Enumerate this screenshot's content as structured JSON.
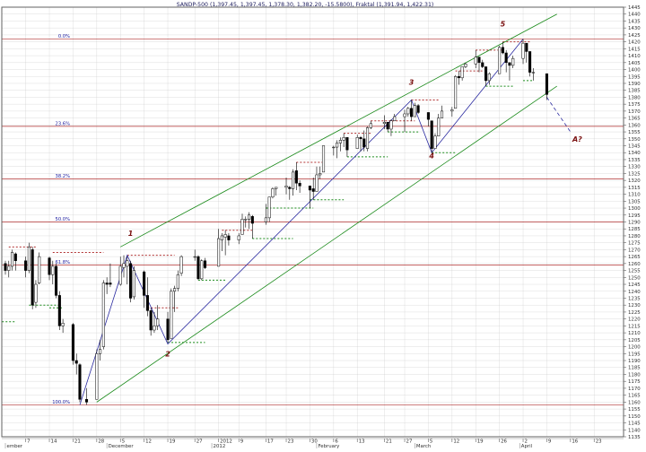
{
  "chart_data": {
    "type": "candlestick",
    "title": "SANDP-500 (1,397.45, 1,397.45, 1,378.30, 1,382.20, -15.5800), Fraktal (1,391.94, 1,422.31)",
    "y_axis": {
      "min": 1135,
      "max": 1445,
      "tick_step": 5,
      "position": "right"
    },
    "x_axis": {
      "tick_labels": [
        {
          "label": "7",
          "date": "2011-11-07"
        },
        {
          "label": "14",
          "date": "2011-11-14"
        },
        {
          "label": "21",
          "date": "2011-11-21"
        },
        {
          "label": "28",
          "date": "2011-11-28"
        },
        {
          "label": "5",
          "date": "2011-12-05"
        },
        {
          "label": "12",
          "date": "2011-12-12"
        },
        {
          "label": "19",
          "date": "2011-12-19"
        },
        {
          "label": "27",
          "date": "2011-12-27"
        },
        {
          "label": "2012",
          "date": "2012-01-03"
        },
        {
          "label": "9",
          "date": "2012-01-09"
        },
        {
          "label": "17",
          "date": "2012-01-17"
        },
        {
          "label": "23",
          "date": "2012-01-23"
        },
        {
          "label": "30",
          "date": "2012-01-30"
        },
        {
          "label": "6",
          "date": "2012-02-06"
        },
        {
          "label": "13",
          "date": "2012-02-13"
        },
        {
          "label": "21",
          "date": "2012-02-21"
        },
        {
          "label": "27",
          "date": "2012-02-27"
        },
        {
          "label": "5",
          "date": "2012-03-05"
        },
        {
          "label": "12",
          "date": "2012-03-12"
        },
        {
          "label": "19",
          "date": "2012-03-19"
        },
        {
          "label": "26",
          "date": "2012-03-26"
        },
        {
          "label": "2",
          "date": "2012-04-02"
        },
        {
          "label": "9",
          "date": "2012-04-09"
        },
        {
          "label": "16",
          "date": "2012-04-16"
        },
        {
          "label": "23",
          "date": "2012-04-23"
        }
      ],
      "month_labels": [
        {
          "label": "ember",
          "date": "2011-11-01"
        },
        {
          "label": "December",
          "date": "2011-12-01"
        },
        {
          "label": "2012",
          "date": "2012-01-01"
        },
        {
          "label": "February",
          "date": "2012-02-01"
        },
        {
          "label": "March",
          "date": "2012-03-01"
        },
        {
          "label": "April",
          "date": "2012-04-01"
        }
      ]
    },
    "candles": [
      [
        "2011-11-01",
        1260,
        1262,
        1252,
        1255
      ],
      [
        "2011-11-02",
        1255,
        1262,
        1250,
        1258
      ],
      [
        "2011-11-03",
        1258,
        1270,
        1255,
        1268
      ],
      [
        "2011-11-04",
        1267,
        1268,
        1255,
        1262
      ],
      [
        "2011-11-07",
        1262,
        1265,
        1250,
        1255
      ],
      [
        "2011-11-08",
        1255,
        1275,
        1253,
        1272
      ],
      [
        "2011-11-09",
        1270,
        1272,
        1227,
        1230
      ],
      [
        "2011-11-10",
        1232,
        1248,
        1228,
        1245
      ],
      [
        "2011-11-11",
        1246,
        1268,
        1245,
        1265
      ],
      [
        "2011-11-14",
        1264,
        1265,
        1248,
        1252
      ],
      [
        "2011-11-15",
        1252,
        1262,
        1245,
        1258
      ],
      [
        "2011-11-16",
        1258,
        1260,
        1235,
        1237
      ],
      [
        "2011-11-17",
        1237,
        1240,
        1212,
        1215
      ],
      [
        "2011-11-18",
        1215,
        1220,
        1210,
        1217
      ],
      [
        "2011-11-21",
        1216,
        1217,
        1187,
        1190
      ],
      [
        "2011-11-22",
        1190,
        1195,
        1180,
        1188
      ],
      [
        "2011-11-23",
        1187,
        1188,
        1160,
        1162
      ],
      [
        "2011-11-25",
        1162,
        1170,
        1158,
        1160
      ],
      [
        "2011-11-28",
        1162,
        1198,
        1162,
        1195
      ],
      [
        "2011-11-29",
        1195,
        1205,
        1190,
        1198
      ],
      [
        "2011-11-30",
        1200,
        1248,
        1198,
        1246
      ],
      [
        "2011-12-01",
        1246,
        1250,
        1238,
        1245
      ],
      [
        "2011-12-02",
        1246,
        1260,
        1243,
        1245
      ],
      [
        "2011-12-05",
        1245,
        1265,
        1244,
        1258
      ],
      [
        "2011-12-06",
        1257,
        1266,
        1250,
        1260
      ],
      [
        "2011-12-07",
        1258,
        1265,
        1245,
        1262
      ],
      [
        "2011-12-08",
        1260,
        1262,
        1232,
        1235
      ],
      [
        "2011-12-09",
        1236,
        1258,
        1234,
        1255
      ],
      [
        "2011-12-12",
        1254,
        1255,
        1228,
        1237
      ],
      [
        "2011-12-13",
        1237,
        1250,
        1222,
        1226
      ],
      [
        "2011-12-14",
        1226,
        1228,
        1208,
        1212
      ],
      [
        "2011-12-15",
        1212,
        1225,
        1210,
        1215
      ],
      [
        "2011-12-16",
        1215,
        1230,
        1212,
        1220
      ],
      [
        "2011-12-19",
        1220,
        1225,
        1203,
        1205
      ],
      [
        "2011-12-20",
        1206,
        1242,
        1206,
        1240
      ],
      [
        "2011-12-21",
        1240,
        1244,
        1225,
        1242
      ],
      [
        "2011-12-22",
        1242,
        1255,
        1240,
        1252
      ],
      [
        "2011-12-23",
        1253,
        1266,
        1251,
        1265
      ],
      [
        "2011-12-27",
        1265,
        1270,
        1262,
        1265
      ],
      [
        "2011-12-28",
        1265,
        1266,
        1248,
        1249
      ],
      [
        "2011-12-29",
        1249,
        1263,
        1248,
        1262
      ],
      [
        "2011-12-30",
        1262,
        1264,
        1256,
        1257
      ],
      [
        "2012-01-03",
        1258,
        1285,
        1258,
        1278
      ],
      [
        "2012-01-04",
        1277,
        1282,
        1269,
        1280
      ],
      [
        "2012-01-05",
        1279,
        1284,
        1266,
        1281
      ],
      [
        "2012-01-06",
        1280,
        1282,
        1273,
        1277
      ],
      [
        "2012-01-09",
        1277,
        1282,
        1274,
        1280
      ],
      [
        "2012-01-10",
        1281,
        1296,
        1281,
        1292
      ],
      [
        "2012-01-11",
        1292,
        1294,
        1286,
        1292
      ],
      [
        "2012-01-12",
        1292,
        1297,
        1285,
        1295
      ],
      [
        "2012-01-13",
        1294,
        1295,
        1278,
        1289
      ],
      [
        "2012-01-17",
        1290,
        1303,
        1288,
        1293
      ],
      [
        "2012-01-18",
        1293,
        1308,
        1290,
        1308
      ],
      [
        "2012-01-19",
        1308,
        1315,
        1307,
        1314
      ],
      [
        "2012-01-20",
        1314,
        1315,
        1309,
        1315
      ],
      [
        "2012-01-23",
        1315,
        1322,
        1310,
        1316
      ],
      [
        "2012-01-24",
        1315,
        1316,
        1306,
        1314
      ],
      [
        "2012-01-25",
        1314,
        1328,
        1309,
        1326
      ],
      [
        "2012-01-26",
        1327,
        1333,
        1313,
        1318
      ],
      [
        "2012-01-27",
        1318,
        1320,
        1311,
        1316
      ],
      [
        "2012-01-30",
        1316,
        1316,
        1300,
        1313
      ],
      [
        "2012-01-31",
        1314,
        1322,
        1306,
        1312
      ],
      [
        "2012-02-01",
        1312,
        1330,
        1312,
        1324
      ],
      [
        "2012-02-02",
        1324,
        1330,
        1321,
        1325
      ],
      [
        "2012-02-03",
        1326,
        1345,
        1326,
        1345
      ],
      [
        "2012-02-06",
        1344,
        1345,
        1338,
        1344
      ],
      [
        "2012-02-07",
        1344,
        1349,
        1336,
        1347
      ],
      [
        "2012-02-08",
        1347,
        1351,
        1341,
        1349
      ],
      [
        "2012-02-09",
        1349,
        1354,
        1344,
        1351
      ],
      [
        "2012-02-10",
        1351,
        1351,
        1337,
        1342
      ],
      [
        "2012-02-13",
        1343,
        1353,
        1343,
        1351
      ],
      [
        "2012-02-14",
        1351,
        1352,
        1341,
        1350
      ],
      [
        "2012-02-15",
        1350,
        1356,
        1341,
        1344
      ],
      [
        "2012-02-16",
        1343,
        1359,
        1341,
        1358
      ],
      [
        "2012-02-17",
        1358,
        1363,
        1357,
        1361
      ],
      [
        "2012-02-21",
        1361,
        1367,
        1357,
        1362
      ],
      [
        "2012-02-22",
        1362,
        1362,
        1355,
        1357
      ],
      [
        "2012-02-23",
        1357,
        1364,
        1352,
        1363
      ],
      [
        "2012-02-24",
        1363,
        1368,
        1363,
        1366
      ],
      [
        "2012-02-27",
        1366,
        1371,
        1355,
        1368
      ],
      [
        "2012-02-28",
        1368,
        1373,
        1366,
        1372
      ],
      [
        "2012-02-29",
        1372,
        1378,
        1363,
        1366
      ],
      [
        "2012-03-01",
        1366,
        1376,
        1366,
        1374
      ],
      [
        "2012-03-02",
        1374,
        1375,
        1368,
        1369
      ],
      [
        "2012-03-05",
        1369,
        1369,
        1359,
        1364
      ],
      [
        "2012-03-06",
        1363,
        1363,
        1340,
        1343
      ],
      [
        "2012-03-07",
        1343,
        1354,
        1343,
        1352
      ],
      [
        "2012-03-08",
        1352,
        1368,
        1352,
        1365
      ],
      [
        "2012-03-09",
        1365,
        1374,
        1365,
        1370
      ],
      [
        "2012-03-12",
        1370,
        1373,
        1366,
        1371
      ],
      [
        "2012-03-13",
        1372,
        1396,
        1372,
        1395
      ],
      [
        "2012-03-14",
        1395,
        1399,
        1389,
        1394
      ],
      [
        "2012-03-15",
        1394,
        1402,
        1392,
        1402
      ],
      [
        "2012-03-16",
        1402,
        1405,
        1401,
        1404
      ],
      [
        "2012-03-19",
        1404,
        1414,
        1401,
        1409
      ],
      [
        "2012-03-20",
        1409,
        1409,
        1398,
        1405
      ],
      [
        "2012-03-21",
        1405,
        1407,
        1401,
        1402
      ],
      [
        "2012-03-22",
        1402,
        1402,
        1388,
        1392
      ],
      [
        "2012-03-23",
        1392,
        1398,
        1389,
        1397
      ],
      [
        "2012-03-26",
        1397,
        1417,
        1397,
        1416
      ],
      [
        "2012-03-27",
        1416,
        1420,
        1411,
        1412
      ],
      [
        "2012-03-28",
        1412,
        1414,
        1398,
        1405
      ],
      [
        "2012-03-29",
        1405,
        1405,
        1392,
        1403
      ],
      [
        "2012-03-30",
        1403,
        1410,
        1401,
        1408
      ],
      [
        "2012-04-02",
        1408,
        1422,
        1404,
        1419
      ],
      [
        "2012-04-03",
        1419,
        1419,
        1405,
        1413
      ],
      [
        "2012-04-04",
        1413,
        1413,
        1395,
        1398
      ],
      [
        "2012-04-05",
        1398,
        1401,
        1392,
        1398
      ],
      [
        "2012-04-09",
        1397,
        1397,
        1378,
        1382
      ]
    ],
    "fibonacci_levels": [
      {
        "label": "0.0%",
        "value": 1422
      },
      {
        "label": "23.6%",
        "value": 1359
      },
      {
        "label": "38.2%",
        "value": 1321
      },
      {
        "label": "50.0%",
        "value": 1290
      },
      {
        "label": "61.8%",
        "value": 1259
      },
      {
        "label": "100.0%",
        "value": 1158
      }
    ],
    "wave_labels": [
      {
        "label": "1",
        "date": "2011-12-08",
        "value": 1280
      },
      {
        "label": "2",
        "date": "2011-12-19",
        "value": 1193
      },
      {
        "label": "3",
        "date": "2012-02-29",
        "value": 1389
      },
      {
        "label": "4",
        "date": "2012-03-06",
        "value": 1336
      },
      {
        "label": "5",
        "date": "2012-03-27",
        "value": 1431
      },
      {
        "label": "A?",
        "date": "2012-04-18",
        "value": 1348
      }
    ],
    "wave_path": [
      [
        "2011-11-23",
        1158
      ],
      [
        "2011-12-07",
        1266
      ],
      [
        "2011-12-19",
        1202
      ],
      [
        "2012-02-29",
        1378
      ],
      [
        "2012-03-06",
        1340
      ],
      [
        "2012-04-02",
        1422
      ]
    ],
    "projection": [
      [
        "2012-04-09",
        1380
      ],
      [
        "2012-04-16",
        1355
      ]
    ],
    "trend_channel": {
      "lower": [
        [
          "2011-11-28",
          1160
        ],
        [
          "2012-04-12",
          1388
        ]
      ],
      "upper": [
        [
          "2011-12-05",
          1272
        ],
        [
          "2012-04-12",
          1440
        ]
      ]
    },
    "fractal_levels": [
      {
        "start": "2011-11-02",
        "end": "2011-11-10",
        "value": 1272,
        "kind": "resistance"
      },
      {
        "start": "2011-11-08",
        "end": "2011-11-17",
        "value": 1230,
        "kind": "support"
      },
      {
        "start": "2011-11-14",
        "end": "2011-11-18",
        "value": 1228,
        "kind": "support"
      },
      {
        "start": "2011-10-31",
        "end": "2011-11-04",
        "value": 1218,
        "kind": "support"
      },
      {
        "start": "2011-11-15",
        "end": "2011-11-30",
        "value": 1268,
        "kind": "resistance"
      },
      {
        "start": "2011-12-07",
        "end": "2011-12-21",
        "value": 1266,
        "kind": "resistance"
      },
      {
        "start": "2011-12-13",
        "end": "2011-12-22",
        "value": 1228,
        "kind": "resistance"
      },
      {
        "start": "2011-12-19",
        "end": "2011-12-30",
        "value": 1203,
        "kind": "support"
      },
      {
        "start": "2011-12-28",
        "end": "2012-01-05",
        "value": 1248,
        "kind": "support"
      },
      {
        "start": "2012-01-04",
        "end": "2012-01-13",
        "value": 1284,
        "kind": "resistance"
      },
      {
        "start": "2012-01-13",
        "end": "2012-01-25",
        "value": 1278,
        "kind": "support"
      },
      {
        "start": "2012-01-17",
        "end": "2012-01-31",
        "value": 1300,
        "kind": "support"
      },
      {
        "start": "2012-01-26",
        "end": "2012-02-03",
        "value": 1333,
        "kind": "resistance"
      },
      {
        "start": "2012-01-30",
        "end": "2012-02-09",
        "value": 1306,
        "kind": "support"
      },
      {
        "start": "2012-02-09",
        "end": "2012-02-17",
        "value": 1354,
        "kind": "resistance"
      },
      {
        "start": "2012-02-10",
        "end": "2012-02-22",
        "value": 1337,
        "kind": "support"
      },
      {
        "start": "2012-02-17",
        "end": "2012-03-01",
        "value": 1363,
        "kind": "resistance"
      },
      {
        "start": "2012-02-22",
        "end": "2012-03-02",
        "value": 1355,
        "kind": "support"
      },
      {
        "start": "2012-02-29",
        "end": "2012-03-08",
        "value": 1378,
        "kind": "resistance"
      },
      {
        "start": "2012-03-06",
        "end": "2012-03-13",
        "value": 1340,
        "kind": "support"
      },
      {
        "start": "2012-03-13",
        "end": "2012-03-21",
        "value": 1399,
        "kind": "resistance"
      },
      {
        "start": "2012-03-19",
        "end": "2012-03-27",
        "value": 1414,
        "kind": "resistance"
      },
      {
        "start": "2012-03-22",
        "end": "2012-03-30",
        "value": 1388,
        "kind": "support"
      },
      {
        "start": "2012-03-27",
        "end": "2012-04-04",
        "value": 1420,
        "kind": "resistance"
      },
      {
        "start": "2012-04-02",
        "end": "2012-04-05",
        "value": 1392,
        "kind": "support"
      }
    ],
    "colors": {
      "candle_outline": "#000000",
      "candle_down": "#000000",
      "candle_up": "#ffffff",
      "fib_line": "#b03030",
      "fib_label": "#2020a0",
      "channel": "#1a8a1a",
      "wave_path": "#2a2aa0",
      "wave_label": "#7a1010",
      "fractal_resistance": "#b03030",
      "fractal_support": "#1a8a1a",
      "grid": "#c8c8c8",
      "axis_text": "#303030",
      "title_text": "#202060"
    },
    "grid": true
  }
}
